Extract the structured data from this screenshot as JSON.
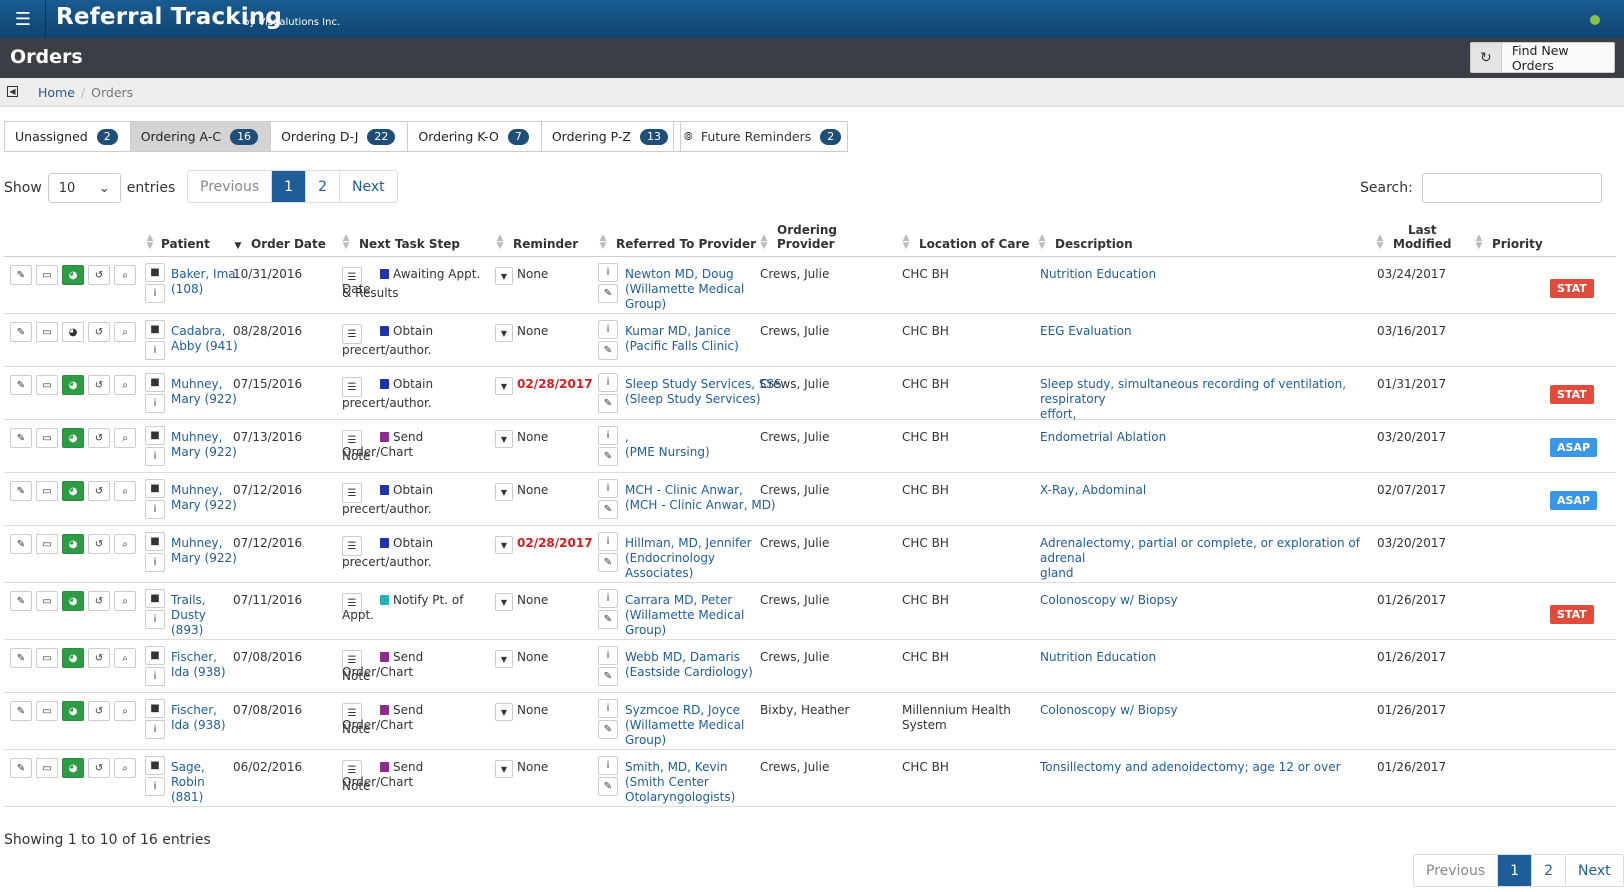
{
  "app": {
    "title": "Referral Tracking",
    "byline": "by Visualutions Inc."
  },
  "page": {
    "title": "Orders",
    "find_button": "Find New Orders"
  },
  "breadcrumb": {
    "home": "Home",
    "current": "Orders"
  },
  "tabs": [
    {
      "label": "Unassigned",
      "count": "2"
    },
    {
      "label": "Ordering A-C",
      "count": "16"
    },
    {
      "label": "Ordering D-J",
      "count": "22"
    },
    {
      "label": "Ordering K-O",
      "count": "7"
    },
    {
      "label": "Ordering P-Z",
      "count": "13"
    }
  ],
  "reminder_tab": {
    "label": "Future Reminders",
    "count": "2"
  },
  "length": {
    "show": "Show",
    "value": "10",
    "entries": "entries"
  },
  "pager": {
    "previous": "Previous",
    "page1": "1",
    "page2": "2",
    "next": "Next"
  },
  "search": {
    "label": "Search:",
    "value": ""
  },
  "columns": {
    "patient": "Patient",
    "order_date": "Order Date",
    "next_task": "Next Task Step",
    "reminder": "Reminder",
    "referred_to": "Referred To Provider",
    "ordering1": "Ordering",
    "ordering2": "Provider",
    "location": "Location of Care",
    "description": "Description",
    "modified1": "Last",
    "modified2": "Modified",
    "priority": "Priority"
  },
  "rows": [
    {
      "patient1": "Baker, Ima",
      "patient2": "(108)",
      "patient3": "",
      "date": "10/31/2016",
      "task1": "Awaiting Appt. Date",
      "task2": "& Results",
      "task_color": "#2233aa",
      "reminder": "None",
      "prov1": "Newton MD, Doug",
      "prov2": "(Willamette Medical",
      "prov3": "Group)",
      "ordering": "Crews, Julie",
      "loc1": "CHC BH",
      "loc2": "",
      "desc1": "Nutrition Education",
      "desc2": "",
      "modified": "03/24/2017",
      "priority": "STAT"
    },
    {
      "patient1": "Cadabra,",
      "patient2": "Abby (941)",
      "patient3": "",
      "date": "08/28/2016",
      "task1": "Obtain",
      "task2": "precert/author.",
      "task_color": "#2233aa",
      "reminder": "None",
      "prov1": "Kumar MD, Janice",
      "prov2": "(Pacific Falls Clinic)",
      "prov3": "",
      "ordering": "Crews, Julie",
      "loc1": "CHC BH",
      "loc2": "",
      "desc1": "EEG Evaluation",
      "desc2": "",
      "modified": "03/16/2017",
      "priority": ""
    },
    {
      "patient1": "Muhney,",
      "patient2": "Mary (922)",
      "patient3": "",
      "date": "07/15/2016",
      "task1": "Obtain",
      "task2": "precert/author.",
      "task_color": "#2233aa",
      "reminder": "02/28/2017",
      "prov1": "Sleep Study Services, SSS",
      "prov2": "(Sleep Study Services)",
      "prov3": "",
      "ordering": "Crews, Julie",
      "loc1": "CHC BH",
      "loc2": "",
      "desc1": "Sleep study, simultaneous recording of ventilation, respiratory",
      "desc2": "effort,",
      "modified": "01/31/2017",
      "priority": "STAT"
    },
    {
      "patient1": "Muhney,",
      "patient2": "Mary (922)",
      "patient3": "",
      "date": "07/13/2016",
      "task1": "Send Order/Chart",
      "task2": "Note",
      "task_color": "#8e2b8e",
      "reminder": "None",
      "prov1": ",",
      "prov2": "(PME Nursing)",
      "prov3": "",
      "ordering": "Crews, Julie",
      "loc1": "CHC BH",
      "loc2": "",
      "desc1": "Endometrial Ablation",
      "desc2": "",
      "modified": "03/20/2017",
      "priority": "ASAP"
    },
    {
      "patient1": "Muhney,",
      "patient2": "Mary (922)",
      "patient3": "",
      "date": "07/12/2016",
      "task1": "Obtain",
      "task2": "precert/author.",
      "task_color": "#2233aa",
      "reminder": "None",
      "prov1": "MCH - Clinic Anwar,",
      "prov2": "(MCH - Clinic Anwar, MD)",
      "prov3": "",
      "ordering": "Crews, Julie",
      "loc1": "CHC BH",
      "loc2": "",
      "desc1": "X-Ray, Abdominal",
      "desc2": "",
      "modified": "02/07/2017",
      "priority": "ASAP"
    },
    {
      "patient1": "Muhney,",
      "patient2": "Mary (922)",
      "patient3": "",
      "date": "07/12/2016",
      "task1": "Obtain",
      "task2": "precert/author.",
      "task_color": "#2233aa",
      "reminder": "02/28/2017",
      "prov1": "Hillman, MD, Jennifer",
      "prov2": "(Endocrinology",
      "prov3": "Associates)",
      "ordering": "Crews, Julie",
      "loc1": "CHC BH",
      "loc2": "",
      "desc1": "Adrenalectomy, partial or complete, or exploration of adrenal",
      "desc2": "gland",
      "modified": "03/20/2017",
      "priority": ""
    },
    {
      "patient1": "Trails,",
      "patient2": "Dusty",
      "patient3": "(893)",
      "date": "07/11/2016",
      "task1": "Notify Pt. of Appt.",
      "task2": "",
      "task_color": "#2ab3b3",
      "reminder": "None",
      "prov1": "Carrara MD, Peter",
      "prov2": "(Willamette Medical",
      "prov3": "Group)",
      "ordering": "Crews, Julie",
      "loc1": "CHC BH",
      "loc2": "",
      "desc1": "Colonoscopy w/ Biopsy",
      "desc2": "",
      "modified": "01/26/2017",
      "priority": "STAT"
    },
    {
      "patient1": "Fischer,",
      "patient2": "Ida (938)",
      "patient3": "",
      "date": "07/08/2016",
      "task1": "Send Order/Chart",
      "task2": "Note",
      "task_color": "#8e2b8e",
      "reminder": "None",
      "prov1": "Webb MD, Damaris",
      "prov2": "(Eastside Cardiology)",
      "prov3": "",
      "ordering": "Crews, Julie",
      "loc1": "CHC BH",
      "loc2": "",
      "desc1": "Nutrition Education",
      "desc2": "",
      "modified": "01/26/2017",
      "priority": ""
    },
    {
      "patient1": "Fischer,",
      "patient2": "Ida (938)",
      "patient3": "",
      "date": "07/08/2016",
      "task1": "Send Order/Chart",
      "task2": "Note",
      "task_color": "#8e2b8e",
      "reminder": "None",
      "prov1": "Syzmcoe RD, Joyce",
      "prov2": "(Willamette Medical",
      "prov3": "Group)",
      "ordering": "Bixby, Heather",
      "loc1": "Millennium Health",
      "loc2": "System",
      "desc1": "Colonoscopy w/ Biopsy",
      "desc2": "",
      "modified": "01/26/2017",
      "priority": ""
    },
    {
      "patient1": "Sage,",
      "patient2": "Robin",
      "patient3": "(881)",
      "date": "06/02/2016",
      "task1": "Send Order/Chart",
      "task2": "Note",
      "task_color": "#8e2b8e",
      "reminder": "None",
      "prov1": "Smith, MD, Kevin",
      "prov2": "(Smith Center",
      "prov3": "Otolaryngologists)",
      "ordering": "Crews, Julie",
      "loc1": "CHC BH",
      "loc2": "",
      "desc1": "Tonsillectomy and adenoidectomy; age 12 or over",
      "desc2": "",
      "modified": "01/26/2017",
      "priority": ""
    }
  ],
  "footer": {
    "info": "Showing 1 to 10 of 16 entries"
  },
  "colors": {
    "header_blue": "#134f7e",
    "titlebar": "#3b3f45",
    "link": "#1f5d99",
    "stat": "#e04b3b",
    "asap": "#3a97e8",
    "green": "#2e9b45",
    "reminder_red": "#d31f1f"
  }
}
